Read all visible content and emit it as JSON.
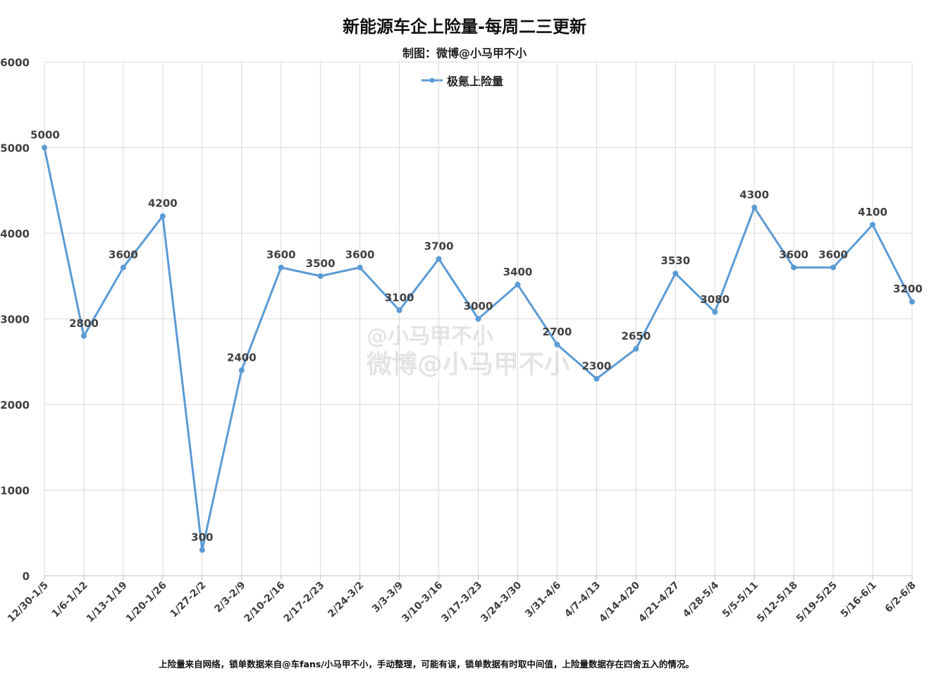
{
  "title": "新能源车企上险量-每周二三更新",
  "subtitle": "制图：微博@小马甲不小",
  "footnote": "上险量来自网络，锁单数据来自@车fans/小马甲不小，手动整理，可能有误，锁单数据有时取中间值，上险量数据存在四舍五入的情况。",
  "watermark": {
    "line1": "@小马甲不小",
    "line2": "微博@小马甲不小"
  },
  "colors": {
    "series": "#5b9bd5",
    "grid": "#d9d9d9",
    "text": "#404040"
  },
  "chart_data": {
    "type": "line",
    "title": "新能源车企上险量-每周二三更新",
    "xlabel": "",
    "ylabel": "",
    "ylim": [
      0,
      6000
    ],
    "yticks": [
      0,
      1000,
      2000,
      3000,
      4000,
      5000,
      6000
    ],
    "grid": true,
    "legend_position": "top",
    "categories": [
      "12/30-1/5",
      "1/6-1/12",
      "1/13-1/19",
      "1/20-1/26",
      "1/27-2/2",
      "2/3-2/9",
      "2/10-2/16",
      "2/17-2/23",
      "2/24-3/2",
      "3/3-3/9",
      "3/10-3/16",
      "3/17-3/23",
      "3/24-3/30",
      "3/31-4/6",
      "4/7-4/13",
      "4/14-4/20",
      "4/21-4/27",
      "4/28-5/4",
      "5/5-5/11",
      "5/12-5/18",
      "5/19-5/25",
      "5/16-6/1",
      "6/2-6/8"
    ],
    "series": [
      {
        "name": "极氪上险量",
        "values": [
          5000,
          2800,
          3600,
          4200,
          300,
          2400,
          3600,
          3500,
          3600,
          3100,
          3700,
          3000,
          3400,
          2700,
          2300,
          2650,
          3530,
          3080,
          4300,
          3600,
          3600,
          4100,
          3200
        ]
      }
    ]
  }
}
